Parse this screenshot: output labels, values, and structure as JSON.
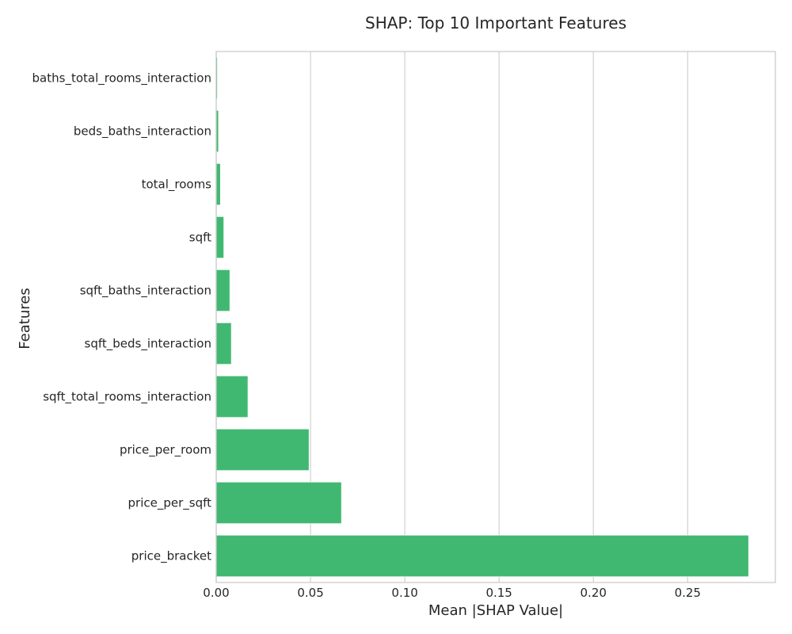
{
  "chart_data": {
    "type": "bar",
    "orientation": "horizontal",
    "title": "SHAP: Top 10 Important Features",
    "xlabel": "Mean |SHAP Value|",
    "ylabel": "Features",
    "categories": [
      "baths_total_rooms_interaction",
      "beds_baths_interaction",
      "total_rooms",
      "sqft",
      "sqft_baths_interaction",
      "sqft_beds_interaction",
      "sqft_total_rooms_interaction",
      "price_per_room",
      "price_per_sqft",
      "price_bracket"
    ],
    "values": [
      0.0006,
      0.0012,
      0.0022,
      0.004,
      0.0072,
      0.008,
      0.0168,
      0.0492,
      0.0664,
      0.2823
    ],
    "xlim": [
      0,
      0.2965
    ],
    "xticks": [
      0.0,
      0.05,
      0.1,
      0.15,
      0.2,
      0.25
    ],
    "xtick_labels": [
      "0.00",
      "0.05",
      "0.10",
      "0.15",
      "0.20",
      "0.25"
    ],
    "grid": "vertical",
    "legend": "none",
    "bar_color": "#41b872"
  }
}
